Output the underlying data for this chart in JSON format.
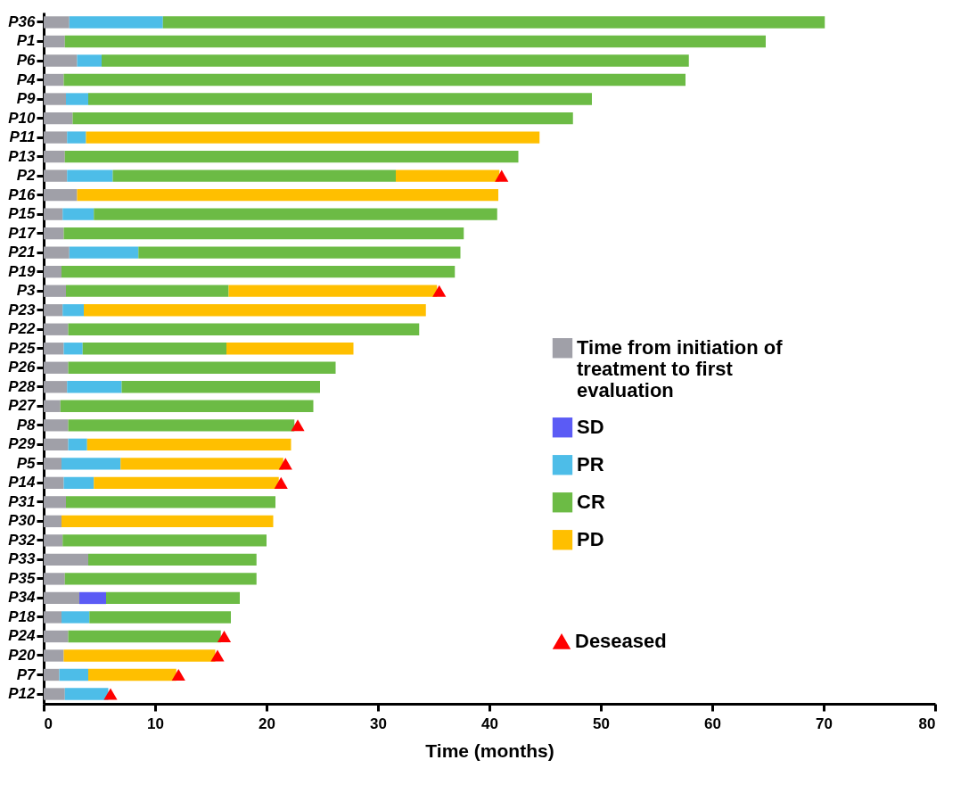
{
  "chart_data": {
    "type": "bar",
    "orientation": "horizontal",
    "stacked": true,
    "xlabel": "Time (months)",
    "xlim": [
      0,
      80
    ],
    "xticks": [
      0,
      10,
      20,
      30,
      40,
      50,
      60,
      70,
      80
    ],
    "grid": false,
    "legend": "right",
    "categories": [
      "P36",
      "P1",
      "P6",
      "P4",
      "P9",
      "P10",
      "P11",
      "P13",
      "P2",
      "P16",
      "P15",
      "P17",
      "P21",
      "P19",
      "P3",
      "P23",
      "P22",
      "P25",
      "P26",
      "P28",
      "P27",
      "P8",
      "P29",
      "P5",
      "P14",
      "P31",
      "P30",
      "P32",
      "P33",
      "P35",
      "P34",
      "P18",
      "P24",
      "P20",
      "P7",
      "P12"
    ],
    "series": [
      {
        "name": "Time from initiation of treatment to first evaluation",
        "color": "#a0a0a8",
        "values": [
          2.3,
          1.9,
          3.0,
          1.8,
          2.0,
          2.6,
          2.1,
          1.9,
          2.1,
          3.0,
          1.7,
          1.8,
          2.3,
          1.6,
          2.0,
          1.7,
          2.2,
          1.8,
          2.2,
          2.1,
          1.5,
          2.2,
          2.2,
          1.6,
          1.8,
          2.0,
          1.6,
          1.7,
          4.0,
          1.9,
          3.2,
          1.6,
          2.2,
          1.8,
          1.4,
          1.9
        ]
      },
      {
        "name": "SD",
        "color": "#5b5bf5",
        "values": [
          null,
          null,
          null,
          null,
          null,
          null,
          null,
          null,
          null,
          null,
          null,
          null,
          null,
          null,
          null,
          null,
          null,
          null,
          null,
          null,
          null,
          null,
          null,
          null,
          null,
          null,
          null,
          null,
          null,
          null,
          2.4,
          null,
          null,
          null,
          null,
          null
        ]
      },
      {
        "name": "PR",
        "color": "#4dbde8",
        "values": [
          8.4,
          null,
          2.2,
          null,
          2.0,
          null,
          1.7,
          null,
          4.1,
          null,
          2.8,
          null,
          6.2,
          null,
          null,
          1.9,
          null,
          1.7,
          null,
          4.9,
          null,
          null,
          1.7,
          5.3,
          2.7,
          null,
          null,
          null,
          null,
          null,
          null,
          2.5,
          null,
          null,
          2.6,
          3.9
        ]
      },
      {
        "name": "CR",
        "color": "#6cbb45",
        "values": [
          59.4,
          62.9,
          52.7,
          55.8,
          45.2,
          44.9,
          null,
          40.7,
          25.4,
          null,
          36.2,
          35.9,
          28.9,
          35.3,
          14.6,
          null,
          31.5,
          12.9,
          24.0,
          17.8,
          22.7,
          20.3,
          null,
          null,
          null,
          18.8,
          null,
          18.3,
          15.1,
          17.2,
          12.0,
          12.7,
          13.7,
          null,
          null,
          null
        ]
      },
      {
        "name": "PD",
        "color": "#ffbf00",
        "values": [
          null,
          null,
          null,
          null,
          null,
          null,
          40.7,
          null,
          9.3,
          37.8,
          null,
          null,
          null,
          null,
          18.7,
          30.7,
          null,
          11.4,
          null,
          null,
          null,
          null,
          18.3,
          14.6,
          16.6,
          null,
          19.0,
          null,
          null,
          null,
          null,
          null,
          null,
          13.6,
          7.9,
          null
        ]
      },
      {
        "name": "Deseased",
        "type": "scatter",
        "marker": "triangle",
        "color": "#ff0000",
        "x": [
          "P2",
          "P3",
          "P8",
          "P5",
          "P14",
          "P24",
          "P20",
          "P7",
          "P12"
        ],
        "values": [
          41.1,
          35.5,
          22.8,
          21.7,
          21.3,
          16.2,
          15.6,
          12.1,
          6.0
        ]
      }
    ]
  }
}
